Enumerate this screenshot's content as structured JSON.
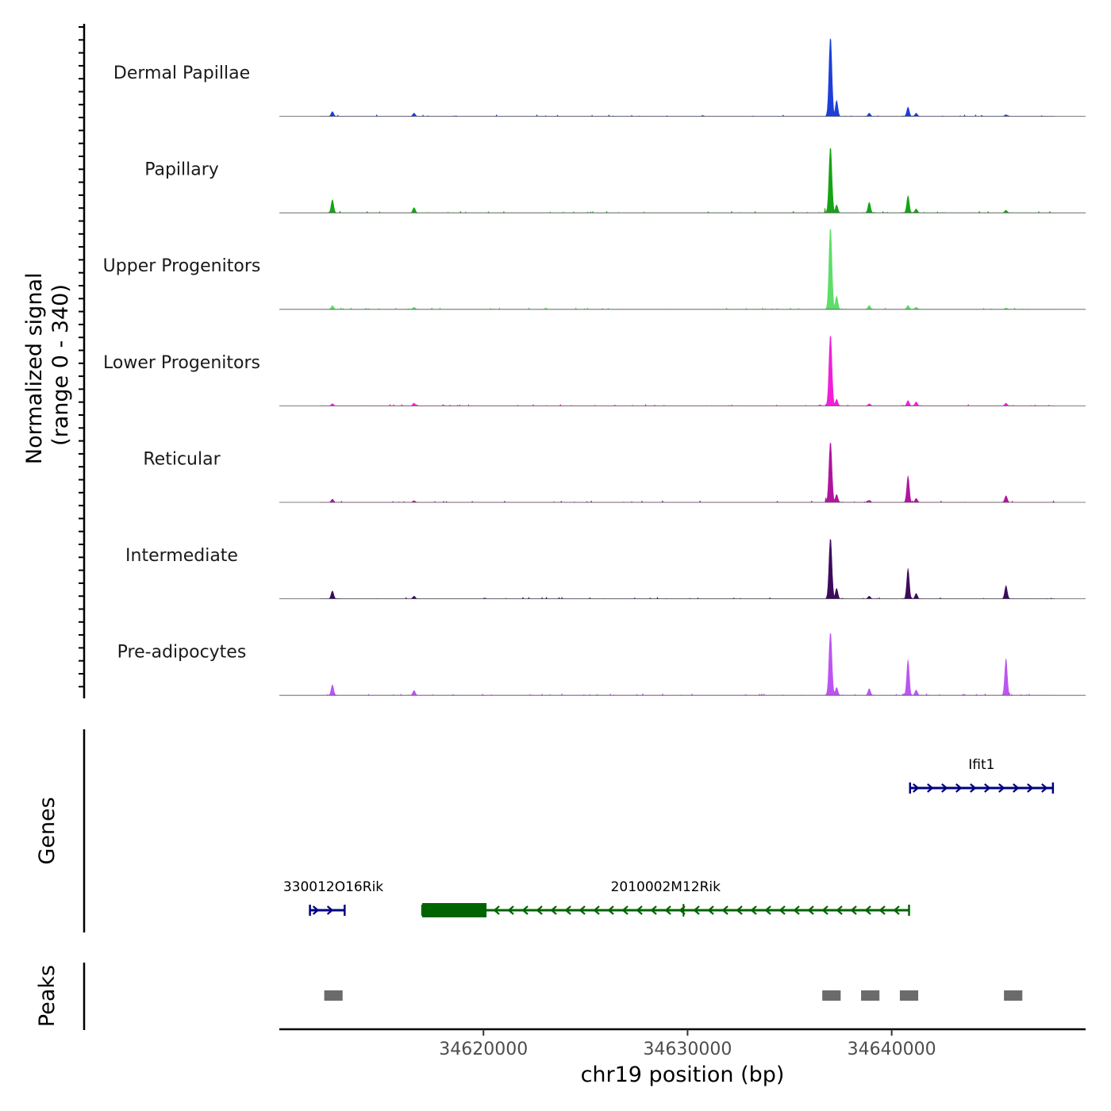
{
  "chart_data": {
    "type": "area",
    "title": "",
    "signal_axis_label": "Normalized signal",
    "signal_axis_range_label": "(range 0 - 340)",
    "ylim": [
      0,
      340
    ],
    "xlabel": "chr19 position (bp)",
    "xlim": [
      34610000,
      34649500
    ],
    "x_ticks": [
      {
        "value": 34620000,
        "label": "34620000"
      },
      {
        "value": 34630000,
        "label": "34630000"
      },
      {
        "value": 34640000,
        "label": "34640000"
      }
    ],
    "tracks": [
      {
        "name": "Dermal Papillae",
        "color": "#1c3fd8",
        "peaks": [
          [
            34612600,
            18
          ],
          [
            34616600,
            12
          ],
          [
            34637000,
            300
          ],
          [
            34637300,
            60
          ],
          [
            34638900,
            12
          ],
          [
            34640800,
            35
          ],
          [
            34641200,
            12
          ],
          [
            34645600,
            6
          ]
        ]
      },
      {
        "name": "Papillary",
        "color": "#16a316",
        "peaks": [
          [
            34612600,
            50
          ],
          [
            34616600,
            20
          ],
          [
            34637000,
            250
          ],
          [
            34637300,
            30
          ],
          [
            34638900,
            40
          ],
          [
            34640800,
            65
          ],
          [
            34641200,
            15
          ],
          [
            34645600,
            10
          ]
        ]
      },
      {
        "name": "Upper Progenitors",
        "color": "#5fdd6a",
        "peaks": [
          [
            34612600,
            14
          ],
          [
            34616600,
            8
          ],
          [
            34637000,
            310
          ],
          [
            34637300,
            50
          ],
          [
            34638900,
            15
          ],
          [
            34640800,
            15
          ],
          [
            34641200,
            8
          ],
          [
            34645600,
            5
          ]
        ]
      },
      {
        "name": "Lower Progenitors",
        "color": "#f020d8",
        "peaks": [
          [
            34612600,
            8
          ],
          [
            34616600,
            10
          ],
          [
            34637000,
            270
          ],
          [
            34637300,
            25
          ],
          [
            34638900,
            8
          ],
          [
            34640800,
            20
          ],
          [
            34641200,
            15
          ],
          [
            34645600,
            10
          ]
        ]
      },
      {
        "name": "Reticular",
        "color": "#b0149f",
        "peaks": [
          [
            34612600,
            12
          ],
          [
            34616600,
            6
          ],
          [
            34637000,
            230
          ],
          [
            34637300,
            30
          ],
          [
            34638900,
            8
          ],
          [
            34640800,
            100
          ],
          [
            34641200,
            15
          ],
          [
            34645600,
            25
          ]
        ]
      },
      {
        "name": "Intermediate",
        "color": "#3d0a5e",
        "peaks": [
          [
            34612600,
            30
          ],
          [
            34616600,
            10
          ],
          [
            34637000,
            230
          ],
          [
            34637300,
            40
          ],
          [
            34638900,
            10
          ],
          [
            34640800,
            115
          ],
          [
            34641200,
            20
          ],
          [
            34645600,
            50
          ]
        ]
      },
      {
        "name": "Pre-adipocytes",
        "color": "#bb55f0",
        "peaks": [
          [
            34612600,
            40
          ],
          [
            34616600,
            18
          ],
          [
            34637000,
            240
          ],
          [
            34637300,
            30
          ],
          [
            34638900,
            25
          ],
          [
            34640800,
            135
          ],
          [
            34641200,
            20
          ],
          [
            34645600,
            140
          ]
        ]
      }
    ],
    "genes_label": "Genes",
    "genes": [
      {
        "name": "Ifit1",
        "start": 34640900,
        "end": 34647900,
        "strand": "+",
        "color": "#000080",
        "row": 1,
        "exons": []
      },
      {
        "name": "330012O16Rik",
        "start": 34611500,
        "end": 34613200,
        "strand": "+",
        "color": "#000080",
        "row": 2,
        "exons": []
      },
      {
        "name": "2010002M12Rik",
        "start": 34617000,
        "end": 34640850,
        "strand": "-",
        "color": "#006400",
        "row": 2,
        "exons": [
          [
            34617000,
            34620150
          ]
        ]
      }
    ],
    "peaks_label": "Peaks",
    "peak_regions": [
      [
        34612200,
        34613100
      ],
      [
        34636600,
        34637500
      ],
      [
        34638500,
        34639400
      ],
      [
        34640400,
        34641300
      ],
      [
        34645500,
        34646400
      ]
    ]
  }
}
